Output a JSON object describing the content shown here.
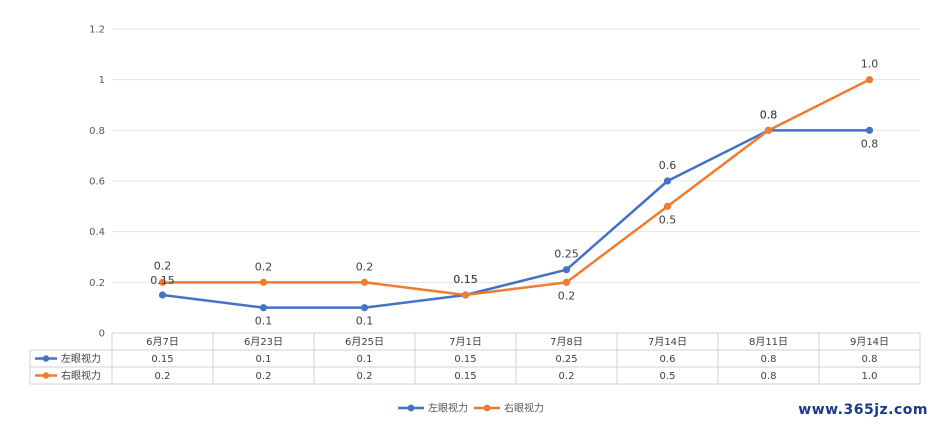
{
  "chart_data": {
    "type": "line",
    "categories": [
      "6月7日",
      "6月23日",
      "6月25日",
      "7月1日",
      "7月8日",
      "7月14日",
      "8月11日",
      "9月14日"
    ],
    "series": [
      {
        "name": "左眼视力",
        "color": "#4472c4",
        "values": [
          0.15,
          0.1,
          0.1,
          0.15,
          0.25,
          0.6,
          0.8,
          0.8
        ],
        "labels": [
          "0.15",
          "0.1",
          "0.1",
          "0.15",
          "0.25",
          "0.6",
          "0.8",
          "0.8"
        ]
      },
      {
        "name": "右眼视力",
        "color": "#ed7d31",
        "values": [
          0.2,
          0.2,
          0.2,
          0.15,
          0.2,
          0.5,
          0.8,
          1.0
        ],
        "labels": [
          "0.2",
          "0.2",
          "0.2",
          "0.15",
          "0.2",
          "0.5",
          "0.8",
          "1.0"
        ]
      }
    ],
    "ylim": [
      0,
      1.2
    ],
    "yticks": [
      "0",
      "0.2",
      "0.4",
      "0.6",
      "0.8",
      "1",
      "1.2"
    ],
    "grid": true,
    "legend": "bottom",
    "data_table": true
  },
  "watermark": "www.365jz.com"
}
